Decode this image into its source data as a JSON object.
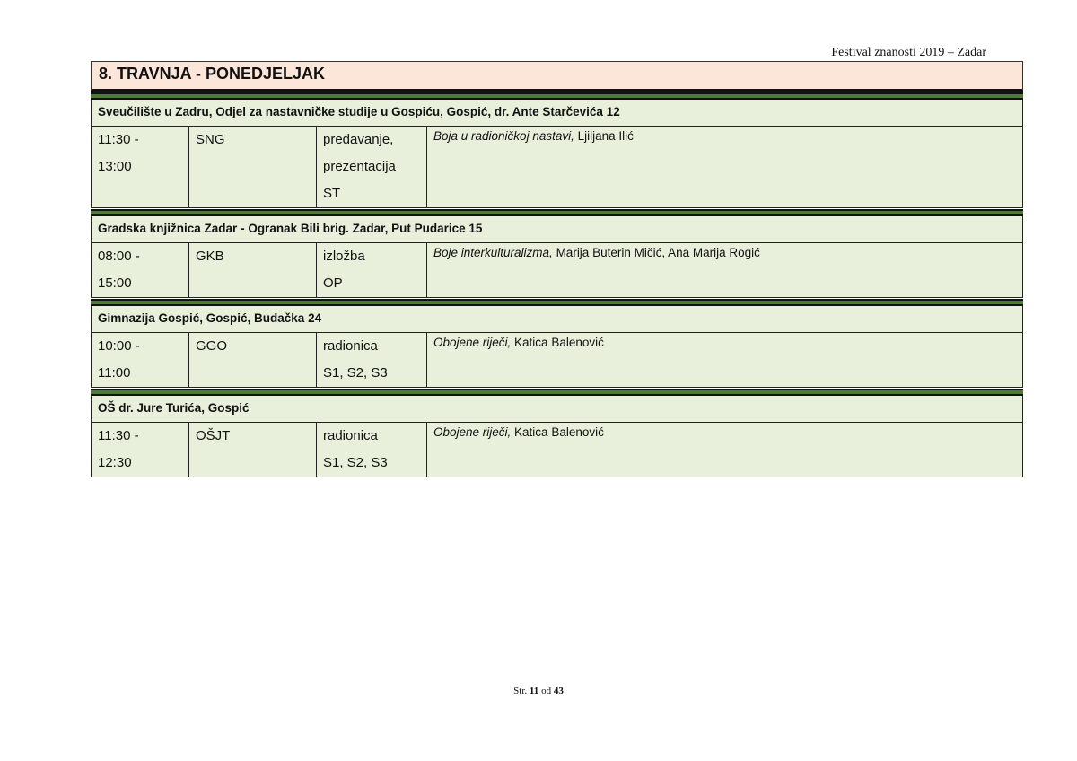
{
  "header": "Festival znanosti 2019 – Zadar",
  "title": "8. TRAVNJA - PONEDJELJAK",
  "sections": [
    {
      "venue": "Sveučilište u Zadru, Odjel za nastavničke studije u Gospiću,  Gospić, dr. Ante Starčevića 12",
      "time_start": "11:30 -",
      "time_end": "13:00",
      "code": "SNG",
      "type_lines": [
        "predavanje,",
        "prezentacija",
        "ST"
      ],
      "event_title": "Boja u radioničkoj nastavi,",
      "event_authors": " Ljiljana Ilić"
    },
    {
      "venue": "Gradska knjižnica Zadar - Ogranak Bili brig. Zadar, Put Pudarice 15",
      "time_start": "08:00 -",
      "time_end": "15:00",
      "code": "GKB",
      "type_lines": [
        "izložba",
        "OP"
      ],
      "event_title": "Boje interkulturalizma,",
      "event_authors": " Marija Buterin Mičić, Ana Marija Rogić"
    },
    {
      "venue": "Gimnazija Gospić, Gospić,  Budačka 24",
      "time_start": "10:00 -",
      "time_end": "11:00",
      "code": "GGO",
      "type_lines": [
        "radionica",
        "S1, S2, S3"
      ],
      "event_title": "Obojene riječi,",
      "event_authors": " Katica Balenović"
    },
    {
      "venue": "OŠ dr. Jure Turića, Gospić",
      "time_start": "11:30 -",
      "time_end": "12:30",
      "code": "OŠJT",
      "type_lines": [
        "radionica",
        "S1, S2, S3"
      ],
      "event_title": "Obojene riječi,",
      "event_authors": " Katica Balenović"
    }
  ],
  "footer": {
    "prefix": "Str. ",
    "page": "11",
    "middle": " od ",
    "total": "43"
  }
}
